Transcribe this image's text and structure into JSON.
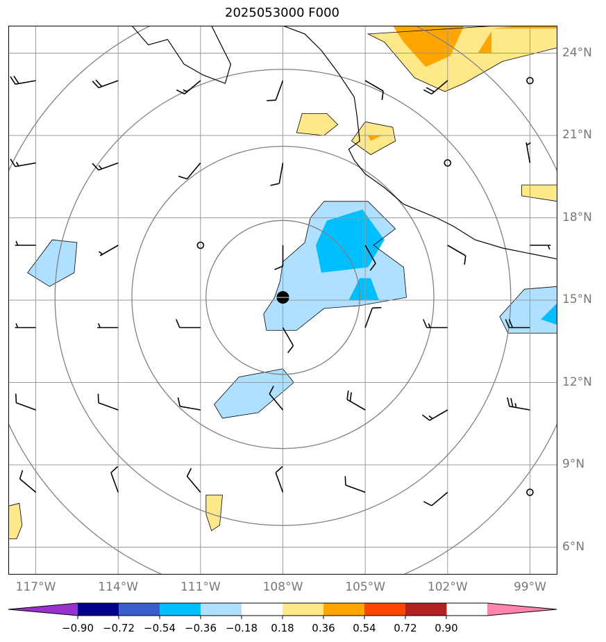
{
  "title": "2025053000 F000",
  "map": {
    "projection": "PlateCarree",
    "lon_range": [
      -118,
      -98
    ],
    "lat_range": [
      5,
      25
    ],
    "lat_ticks": [
      {
        "value": 24,
        "label": "24°N"
      },
      {
        "value": 21,
        "label": "21°N"
      },
      {
        "value": 18,
        "label": "18°N"
      },
      {
        "value": 15,
        "label": "15°N"
      },
      {
        "value": 12,
        "label": "12°N"
      },
      {
        "value": 9,
        "label": "9°N"
      },
      {
        "value": 6,
        "label": "6°N"
      }
    ],
    "lon_ticks": [
      {
        "value": -117,
        "label": "117°W"
      },
      {
        "value": -114,
        "label": "114°W"
      },
      {
        "value": -111,
        "label": "111°W"
      },
      {
        "value": -108,
        "label": "108°W"
      },
      {
        "value": -105,
        "label": "105°W"
      },
      {
        "value": -102,
        "label": "102°W"
      },
      {
        "value": -99,
        "label": "99°W"
      }
    ],
    "storm_center": {
      "lon": -108,
      "lat": 15.1
    },
    "range_rings_deg": [
      2.8,
      5.5,
      8.3,
      11
    ]
  },
  "colorbar": {
    "levels": [
      "−0.90",
      "−0.72",
      "−0.54",
      "−0.36",
      "−0.18",
      "0.18",
      "0.36",
      "0.54",
      "0.72",
      "0.90"
    ],
    "colors": [
      "#9932cc",
      "#00008b",
      "#3a5fcd",
      "#00bfff",
      "#b0e0ff",
      "#ffffff",
      "#ffe88a",
      "#ffa500",
      "#ff4500",
      "#b22222",
      "#ff85b0"
    ]
  },
  "chart_data": {
    "type": "map",
    "title": "2025053000 F000",
    "field_levels": [
      -0.9,
      -0.72,
      -0.54,
      -0.36,
      -0.18,
      0.18,
      0.36,
      0.54,
      0.72,
      0.9
    ],
    "shaded_regions": [
      {
        "level": "light-blue",
        "points": [
          [
            -106.5,
            18.6
          ],
          [
            -104.9,
            18.6
          ],
          [
            -103.9,
            17.6
          ],
          [
            -104.7,
            17.0
          ],
          [
            -103.6,
            16.2
          ],
          [
            -103.5,
            15.1
          ],
          [
            -105.2,
            14.8
          ],
          [
            -106.5,
            14.7
          ],
          [
            -107.5,
            13.9
          ],
          [
            -108.6,
            13.9
          ],
          [
            -108.7,
            14.5
          ],
          [
            -108.3,
            15.1
          ],
          [
            -108.1,
            15.7
          ],
          [
            -108.0,
            16.4
          ],
          [
            -107.2,
            17.1
          ],
          [
            -107.0,
            18.0
          ]
        ]
      },
      {
        "level": "cyan",
        "points": [
          [
            -106.4,
            17.9
          ],
          [
            -105.1,
            18.3
          ],
          [
            -104.3,
            17.2
          ],
          [
            -104.9,
            16.2
          ],
          [
            -106.6,
            16.0
          ],
          [
            -106.8,
            17.0
          ]
        ]
      },
      {
        "level": "cyan",
        "points": [
          [
            -105.6,
            15.0
          ],
          [
            -104.5,
            15.0
          ],
          [
            -104.8,
            15.8
          ],
          [
            -105.2,
            15.8
          ]
        ]
      },
      {
        "level": "light-blue",
        "points": [
          [
            -110.5,
            11.2
          ],
          [
            -109.6,
            12.2
          ],
          [
            -108.0,
            12.5
          ],
          [
            -107.6,
            12.0
          ],
          [
            -108.9,
            10.9
          ],
          [
            -110.2,
            10.7
          ]
        ]
      },
      {
        "level": "light-blue",
        "points": [
          [
            -117.3,
            16.0
          ],
          [
            -116.4,
            17.2
          ],
          [
            -115.5,
            17.1
          ],
          [
            -115.6,
            16.0
          ],
          [
            -116.5,
            15.5
          ]
        ]
      },
      {
        "level": "light-blue",
        "points": [
          [
            -99.2,
            15.4
          ],
          [
            -98.0,
            15.5
          ],
          [
            -98.0,
            13.8
          ],
          [
            -99.8,
            13.8
          ],
          [
            -100.1,
            14.4
          ]
        ]
      },
      {
        "level": "cyan",
        "points": [
          [
            -98.0,
            14.9
          ],
          [
            -98.6,
            14.3
          ],
          [
            -98.0,
            14.1
          ]
        ]
      },
      {
        "level": "yellow",
        "points": [
          [
            -104.9,
            24.7
          ],
          [
            -100.2,
            25.0
          ],
          [
            -98.0,
            25.0
          ],
          [
            -98.0,
            24.2
          ],
          [
            -100.0,
            23.7
          ],
          [
            -101.4,
            22.9
          ],
          [
            -102.1,
            22.6
          ],
          [
            -103.2,
            23.1
          ],
          [
            -104.3,
            24.4
          ]
        ]
      },
      {
        "level": "orange",
        "points": [
          [
            -104.0,
            25.0
          ],
          [
            -101.4,
            25.0
          ],
          [
            -101.9,
            23.9
          ],
          [
            -102.8,
            23.5
          ],
          [
            -103.6,
            24.4
          ]
        ]
      },
      {
        "level": "orange",
        "points": [
          [
            -99.4,
            25.0
          ],
          [
            -98.0,
            25.0
          ],
          [
            -98.0,
            24.9
          ],
          [
            -100.4,
            24.9
          ]
        ]
      },
      {
        "level": "orange",
        "points": [
          [
            -100.9,
            24.0
          ],
          [
            -100.4,
            24.0
          ],
          [
            -100.4,
            24.8
          ]
        ]
      },
      {
        "level": "yellow",
        "points": [
          [
            -107.3,
            21.8
          ],
          [
            -106.4,
            21.8
          ],
          [
            -106.0,
            21.4
          ],
          [
            -106.5,
            21.0
          ],
          [
            -107.5,
            21.1
          ]
        ]
      },
      {
        "level": "yellow",
        "points": [
          [
            -105.0,
            21.5
          ],
          [
            -104.0,
            21.3
          ],
          [
            -103.9,
            20.8
          ],
          [
            -104.8,
            20.3
          ],
          [
            -105.5,
            20.8
          ]
        ]
      },
      {
        "level": "orange",
        "points": [
          [
            -104.9,
            21.0
          ],
          [
            -104.4,
            21.0
          ],
          [
            -104.8,
            20.8
          ]
        ]
      },
      {
        "level": "yellow",
        "points": [
          [
            -98.0,
            19.2
          ],
          [
            -99.3,
            19.2
          ],
          [
            -99.3,
            18.8
          ],
          [
            -98.0,
            18.6
          ]
        ]
      },
      {
        "level": "yellow",
        "points": [
          [
            -110.8,
            7.9
          ],
          [
            -110.2,
            7.9
          ],
          [
            -110.3,
            6.8
          ],
          [
            -110.6,
            6.6
          ],
          [
            -110.8,
            7.2
          ]
        ]
      },
      {
        "level": "yellow",
        "points": [
          [
            -118.0,
            7.5
          ],
          [
            -117.6,
            7.6
          ],
          [
            -117.5,
            6.8
          ],
          [
            -117.7,
            6.3
          ],
          [
            -118.0,
            6.3
          ]
        ]
      }
    ],
    "wind_barbs": [
      {
        "lon": -117,
        "lat": 23,
        "dir": 260,
        "spd": 20
      },
      {
        "lon": -114,
        "lat": 23,
        "dir": 250,
        "spd": 20
      },
      {
        "lon": -111,
        "lat": 23,
        "dir": 230,
        "spd": 15
      },
      {
        "lon": -108,
        "lat": 23,
        "dir": 200,
        "spd": 10
      },
      {
        "lon": -105,
        "lat": 23,
        "dir": 120,
        "spd": 10
      },
      {
        "lon": -102,
        "lat": 23,
        "dir": 230,
        "spd": 20
      },
      {
        "lon": -99,
        "lat": 23,
        "dir": 0,
        "spd": 0
      },
      {
        "lon": -117,
        "lat": 20,
        "dir": 260,
        "spd": 15
      },
      {
        "lon": -114,
        "lat": 20,
        "dir": 250,
        "spd": 15
      },
      {
        "lon": -111,
        "lat": 20,
        "dir": 220,
        "spd": 10
      },
      {
        "lon": -108,
        "lat": 20,
        "dir": 190,
        "spd": 10
      },
      {
        "lon": -102,
        "lat": 20,
        "dir": 0,
        "spd": 0
      },
      {
        "lon": -99,
        "lat": 20,
        "dir": 350,
        "spd": 5
      },
      {
        "lon": -117,
        "lat": 17,
        "dir": 270,
        "spd": 5
      },
      {
        "lon": -114,
        "lat": 17,
        "dir": 240,
        "spd": 5
      },
      {
        "lon": -111,
        "lat": 17,
        "dir": 0,
        "spd": 0
      },
      {
        "lon": -108,
        "lat": 17,
        "dir": 180,
        "spd": 10
      },
      {
        "lon": -105,
        "lat": 17,
        "dir": 150,
        "spd": 10
      },
      {
        "lon": -102,
        "lat": 17,
        "dir": 120,
        "spd": 10
      },
      {
        "lon": -99,
        "lat": 17,
        "dir": 90,
        "spd": 5
      },
      {
        "lon": -108,
        "lat": 14,
        "dir": 150,
        "spd": 10
      },
      {
        "lon": -105,
        "lat": 14,
        "dir": 20,
        "spd": 10
      },
      {
        "lon": -117,
        "lat": 14,
        "dir": 270,
        "spd": 5
      },
      {
        "lon": -114,
        "lat": 14,
        "dir": 270,
        "spd": 5
      },
      {
        "lon": -111,
        "lat": 14,
        "dir": 270,
        "spd": 10
      },
      {
        "lon": -102,
        "lat": 14,
        "dir": 270,
        "spd": 15
      },
      {
        "lon": -99,
        "lat": 14,
        "dir": 270,
        "spd": 20
      },
      {
        "lon": -117,
        "lat": 11,
        "dir": 290,
        "spd": 10
      },
      {
        "lon": -114,
        "lat": 11,
        "dir": 290,
        "spd": 10
      },
      {
        "lon": -111,
        "lat": 11,
        "dir": 280,
        "spd": 10
      },
      {
        "lon": -108,
        "lat": 11,
        "dir": 320,
        "spd": 10
      },
      {
        "lon": -105,
        "lat": 11,
        "dir": 300,
        "spd": 20
      },
      {
        "lon": -102,
        "lat": 11,
        "dir": 240,
        "spd": 15
      },
      {
        "lon": -99,
        "lat": 11,
        "dir": 280,
        "spd": 25
      },
      {
        "lon": -117,
        "lat": 8,
        "dir": 310,
        "spd": 10
      },
      {
        "lon": -114,
        "lat": 8,
        "dir": 340,
        "spd": 10
      },
      {
        "lon": -111,
        "lat": 8,
        "dir": 320,
        "spd": 10
      },
      {
        "lon": -108,
        "lat": 8,
        "dir": 340,
        "spd": 10
      },
      {
        "lon": -105,
        "lat": 8,
        "dir": 290,
        "spd": 10
      },
      {
        "lon": -102,
        "lat": 8,
        "dir": 230,
        "spd": 10
      },
      {
        "lon": -99,
        "lat": 8,
        "dir": 0,
        "spd": 0
      }
    ],
    "coastline": [
      [
        -113.5,
        25.0
      ],
      [
        -112.9,
        24.3
      ],
      [
        -112.2,
        24.5
      ],
      [
        -112.0,
        24.2
      ],
      [
        -111.6,
        23.6
      ],
      [
        -110.9,
        23.2
      ],
      [
        -110.1,
        22.9
      ],
      [
        -109.9,
        23.6
      ],
      [
        -110.3,
        24.4
      ],
      [
        -110.6,
        25.0
      ]
    ],
    "mainland_coast": [
      [
        -108.0,
        25.0
      ],
      [
        -107.2,
        24.7
      ],
      [
        -106.6,
        24.1
      ],
      [
        -106.0,
        23.3
      ],
      [
        -105.4,
        22.4
      ],
      [
        -105.3,
        21.7
      ],
      [
        -105.2,
        20.8
      ],
      [
        -105.6,
        20.5
      ],
      [
        -105.4,
        20.1
      ],
      [
        -105.0,
        19.6
      ],
      [
        -104.3,
        19.1
      ],
      [
        -103.6,
        18.5
      ],
      [
        -102.4,
        18.0
      ],
      [
        -101.8,
        17.7
      ],
      [
        -101.0,
        17.2
      ],
      [
        -100.0,
        16.9
      ],
      [
        -99.0,
        16.7
      ],
      [
        -98.0,
        16.5
      ]
    ]
  }
}
